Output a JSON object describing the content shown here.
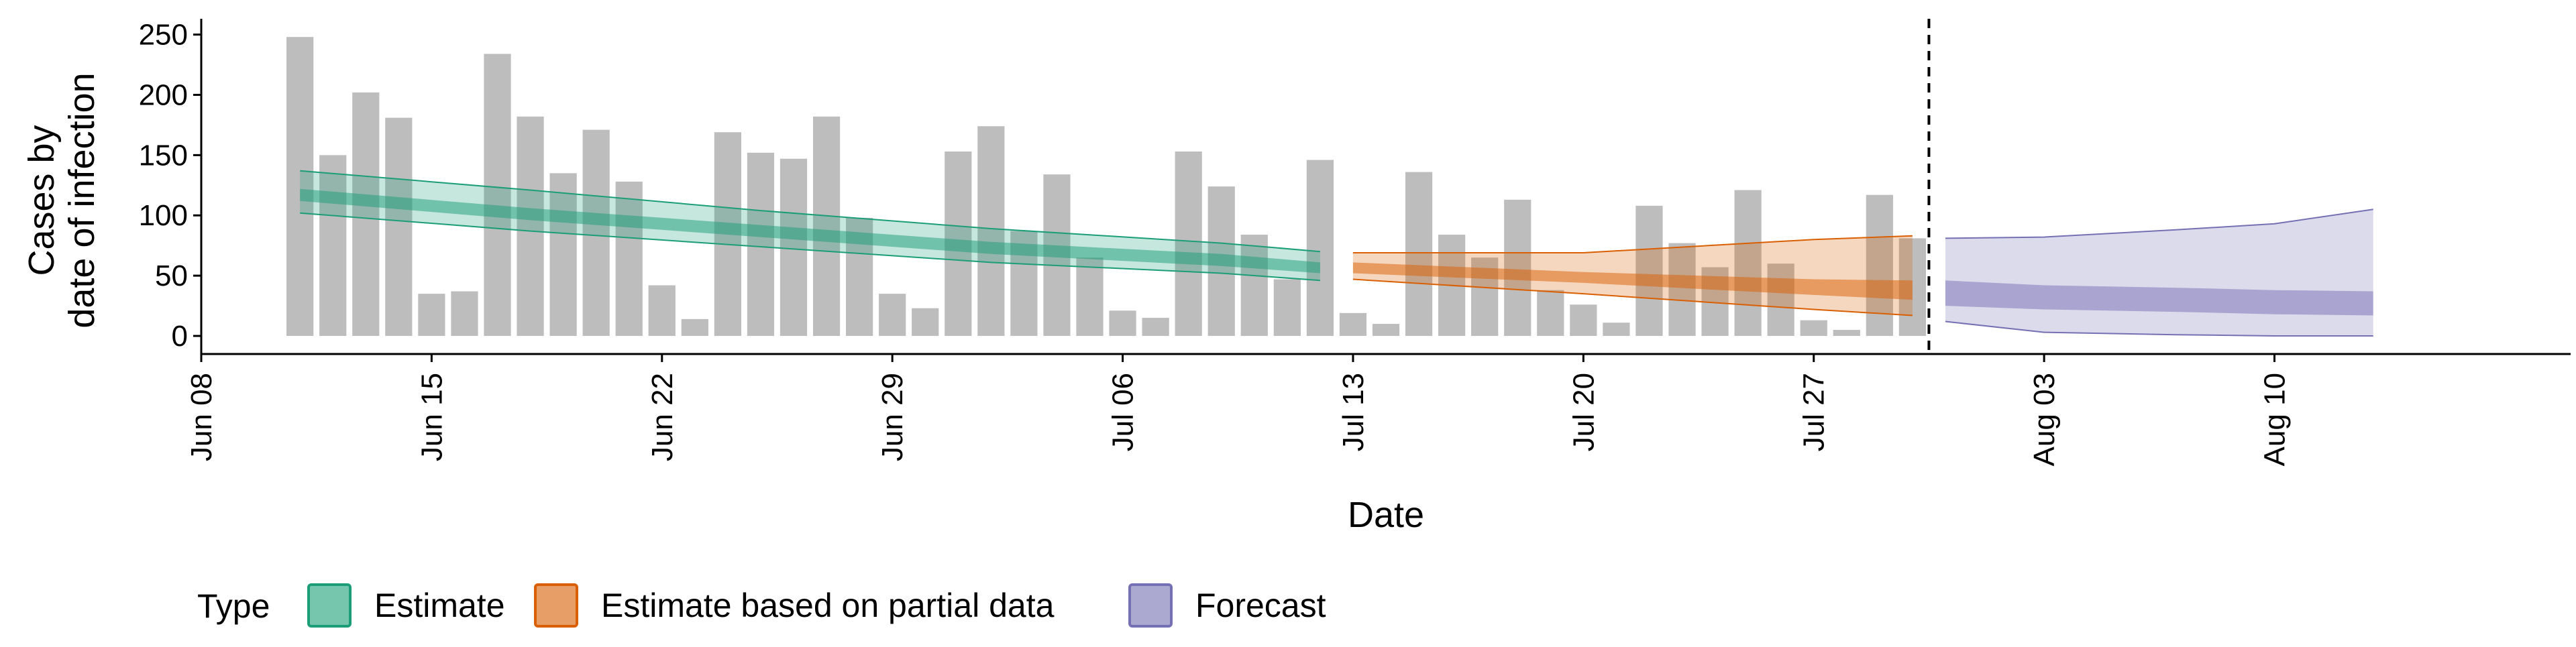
{
  "chart_data": {
    "type": "bar",
    "title": "",
    "xlabel": "Date",
    "ylabel_lines": [
      "Cases by",
      "date of infection"
    ],
    "ylim": [
      -15,
      262
    ],
    "y_ticks": [
      0,
      50,
      100,
      150,
      200,
      250
    ],
    "x_ticks": [
      {
        "date": "2020-06-08",
        "label": "Jun 08"
      },
      {
        "date": "2020-06-15",
        "label": "Jun 15"
      },
      {
        "date": "2020-06-22",
        "label": "Jun 22"
      },
      {
        "date": "2020-06-29",
        "label": "Jun 29"
      },
      {
        "date": "2020-07-06",
        "label": "Jul 06"
      },
      {
        "date": "2020-07-13",
        "label": "Jul 13"
      },
      {
        "date": "2020-07-20",
        "label": "Jul 20"
      },
      {
        "date": "2020-07-27",
        "label": "Jul 27"
      },
      {
        "date": "2020-08-03",
        "label": "Aug 03"
      },
      {
        "date": "2020-08-10",
        "label": "Aug 10"
      }
    ],
    "xlim": [
      "2020-06-08",
      "2020-08-19"
    ],
    "forecast_start_date": "2020-07-31",
    "bar_color": "#bdbdbd",
    "reported_cases": {
      "dates": [
        "2020-06-11",
        "2020-06-12",
        "2020-06-13",
        "2020-06-14",
        "2020-06-15",
        "2020-06-16",
        "2020-06-17",
        "2020-06-18",
        "2020-06-19",
        "2020-06-20",
        "2020-06-21",
        "2020-06-22",
        "2020-06-23",
        "2020-06-24",
        "2020-06-25",
        "2020-06-26",
        "2020-06-27",
        "2020-06-28",
        "2020-06-29",
        "2020-06-30",
        "2020-07-01",
        "2020-07-02",
        "2020-07-03",
        "2020-07-04",
        "2020-07-05",
        "2020-07-06",
        "2020-07-07",
        "2020-07-08",
        "2020-07-09",
        "2020-07-10",
        "2020-07-11",
        "2020-07-12",
        "2020-07-13",
        "2020-07-14",
        "2020-07-15",
        "2020-07-16",
        "2020-07-17",
        "2020-07-18",
        "2020-07-19",
        "2020-07-20",
        "2020-07-21",
        "2020-07-22",
        "2020-07-23",
        "2020-07-24",
        "2020-07-25",
        "2020-07-26",
        "2020-07-27",
        "2020-07-28",
        "2020-07-29",
        "2020-07-30"
      ],
      "values": [
        248,
        150,
        202,
        181,
        35,
        37,
        234,
        182,
        135,
        171,
        128,
        42,
        14,
        169,
        152,
        147,
        182,
        98,
        35,
        23,
        153,
        174,
        87,
        134,
        65,
        21,
        15,
        153,
        124,
        84,
        47,
        146,
        19,
        10,
        136,
        84,
        65,
        113,
        38,
        26,
        11,
        108,
        77,
        57,
        121,
        60,
        13,
        5,
        117,
        81
      ]
    },
    "series": [
      {
        "name": "Estimate",
        "color": "#1b9e77",
        "dates": [
          "2020-06-11",
          "2020-06-18",
          "2020-06-25",
          "2020-07-02",
          "2020-07-09",
          "2020-07-12"
        ],
        "median": [
          118,
          103,
          88,
          74,
          64,
          57
        ],
        "inner_band": {
          "lower": [
            112,
            96,
            82,
            68,
            58,
            52
          ],
          "upper": [
            122,
            106,
            92,
            78,
            68,
            61
          ]
        },
        "outer_band": {
          "lower": [
            102,
            87,
            74,
            61,
            52,
            46
          ],
          "upper": [
            137,
            121,
            104,
            89,
            77,
            70
          ]
        }
      },
      {
        "name": "Estimate based on partial data",
        "color": "#d95f02",
        "dates": [
          "2020-07-13",
          "2020-07-20",
          "2020-07-27",
          "2020-07-30"
        ],
        "median": [
          57,
          49,
          42,
          39
        ],
        "inner_band": {
          "lower": [
            52,
            44,
            34,
            30
          ],
          "upper": [
            61,
            53,
            47,
            46
          ]
        },
        "outer_band": {
          "lower": [
            47,
            35,
            22,
            17
          ],
          "upper": [
            69,
            69,
            80,
            83
          ]
        }
      },
      {
        "name": "Forecast",
        "color": "#7570b3",
        "dates": [
          "2020-07-31",
          "2020-08-03",
          "2020-08-07",
          "2020-08-10",
          "2020-08-13"
        ],
        "median": [
          35,
          32,
          29,
          28,
          27
        ],
        "inner_band": {
          "lower": [
            25,
            22,
            20,
            18,
            17
          ],
          "upper": [
            46,
            42,
            40,
            38,
            37
          ]
        },
        "outer_band": {
          "lower": [
            12,
            3,
            1,
            0,
            0
          ],
          "upper": [
            81,
            82,
            88,
            93,
            105
          ]
        }
      }
    ],
    "legend": {
      "title": "Type",
      "entries": [
        "Estimate",
        "Estimate based on partial data",
        "Forecast"
      ],
      "position": "bottom"
    }
  }
}
